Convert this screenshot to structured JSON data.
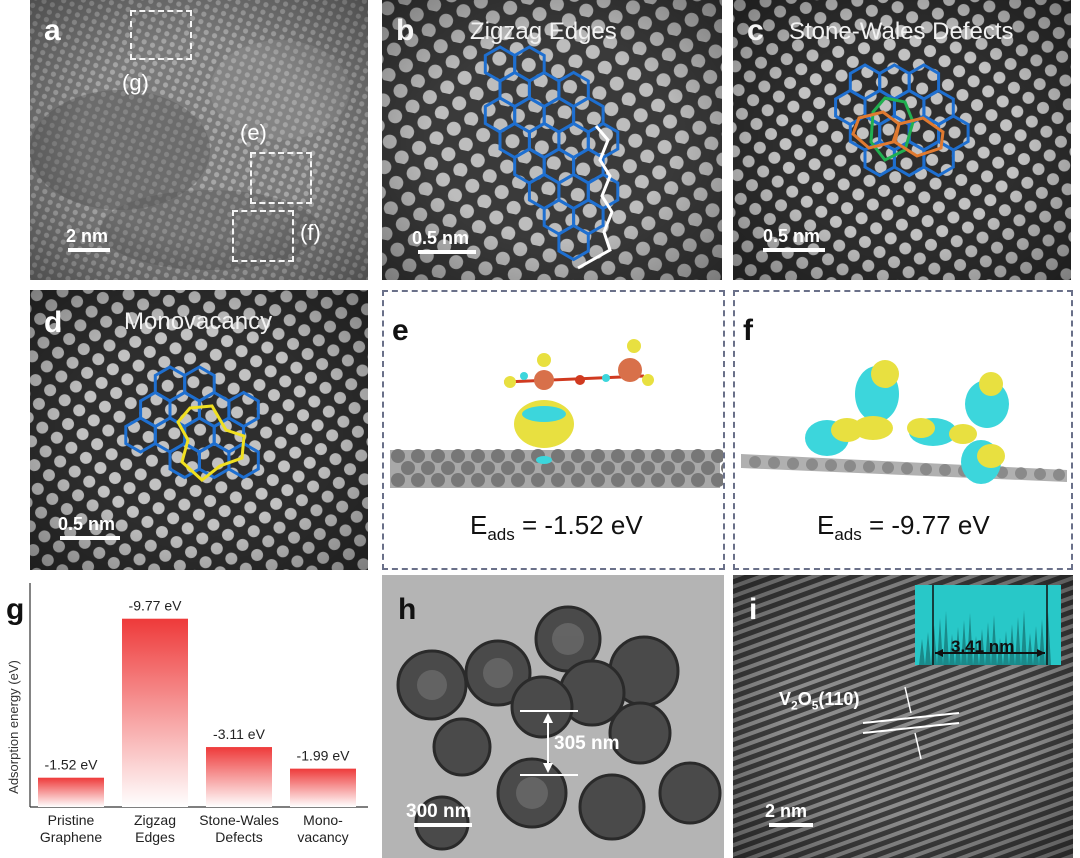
{
  "panels": {
    "a": {
      "label": "a",
      "scale": "2 nm",
      "boxes": [
        {
          "label": "(g)"
        },
        {
          "label": "(e)"
        },
        {
          "label": "(f)"
        }
      ]
    },
    "b": {
      "label": "b",
      "title": "Zigzag Edges",
      "scale": "0.5 nm"
    },
    "c": {
      "label": "c",
      "title": "Stone-Wales Defects",
      "scale": "0.5 nm"
    },
    "d": {
      "label": "d",
      "title": "Monovacancy",
      "scale": "0.5 nm"
    },
    "e": {
      "label": "e",
      "eads_prefix": "E",
      "eads_sub": "ads",
      "eads_value": " = -1.52 eV"
    },
    "f": {
      "label": "f",
      "eads_prefix": "E",
      "eads_sub": "ads",
      "eads_value": " = -9.77 eV"
    },
    "h": {
      "label": "h",
      "scale": "300 nm",
      "measure": "305 nm"
    },
    "i": {
      "label": "i",
      "scale": "2 nm",
      "plane": "V2O5(110)",
      "plane_main": "V",
      "plane_sub1": "2",
      "plane_mid": "O",
      "plane_sub2": "5",
      "plane_end": "(110)",
      "inset_measure": "3.41 nm"
    }
  },
  "chart_data": {
    "label": "g",
    "type": "bar",
    "ylabel": "Adsorption energy (eV)",
    "categories": [
      [
        "Pristine",
        "Graphene"
      ],
      [
        "Zigzag",
        "Edges"
      ],
      [
        "Stone-Wales",
        "Defects"
      ],
      [
        "Mono-",
        "vacancy"
      ]
    ],
    "values": [
      -1.52,
      -9.77,
      -3.11,
      -1.99
    ],
    "value_labels": [
      "-1.52 eV",
      "-9.77 eV",
      "-3.11 eV",
      "-1.99 eV"
    ],
    "bar_color": "#ee3a3a",
    "ylim": [
      0,
      -11
    ]
  }
}
